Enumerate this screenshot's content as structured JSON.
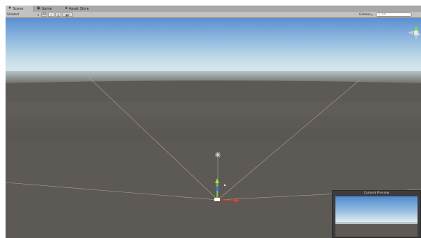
{
  "tabs": [
    {
      "label": "Scene",
      "icon": "scene-icon"
    },
    {
      "label": "Game",
      "icon": "game-icon"
    },
    {
      "label": "Asset Store",
      "icon": "asset-store-icon"
    }
  ],
  "toolbar": {
    "shading_mode": "Shaded",
    "view_2d": "2D",
    "search_placeholder": "All",
    "gizmos_label": "Gizmos"
  },
  "preview": {
    "title": "Camera Preview"
  },
  "colors": {
    "ground": "#5d5954",
    "sky_top": "#5c8fd0",
    "horizon": "#d2e4e9"
  }
}
